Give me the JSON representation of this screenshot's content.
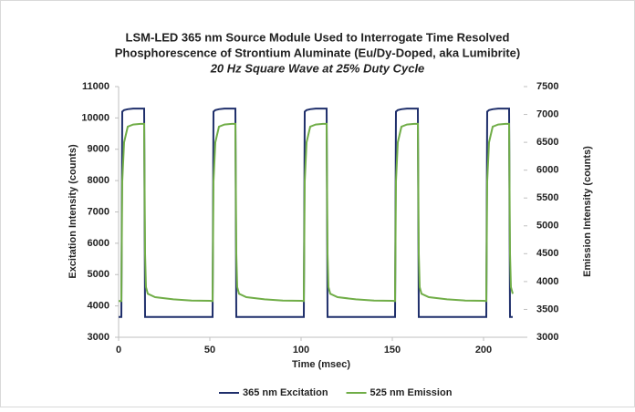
{
  "chart_data": {
    "type": "line",
    "title": [
      "LSM-LED 365 nm Source Module Used to Interrogate Time Resolved",
      "Phosphorescence of Strontium Aluminate (Eu/Dy-Doped, aka Lumibrite)"
    ],
    "subtitle": "20 Hz Square Wave at 25% Duty Cycle",
    "x_label": "Time (msec)",
    "y_label": "Excitation Intensity (counts)",
    "y2_label": "Emission Intensity (counts)",
    "x": [
      0,
      1.5,
      2,
      3,
      5,
      8,
      12,
      14,
      14.5,
      15,
      16,
      20,
      30,
      40,
      50,
      51.5,
      52,
      53,
      55,
      58,
      62,
      64,
      64.5,
      65,
      66,
      70,
      80,
      90,
      100,
      101.5,
      102,
      103,
      105,
      108,
      112,
      114,
      114.5,
      115,
      116,
      120,
      130,
      140,
      150,
      151.5,
      152,
      153,
      155,
      158,
      162,
      164,
      164.5,
      165,
      166,
      170,
      180,
      190,
      200,
      201.5,
      202,
      203,
      205,
      208,
      212,
      214,
      214.5,
      215,
      216
    ],
    "series": [
      {
        "name": "365 nm Excitation",
        "color": "#1f2f6b",
        "axis": "y",
        "values": [
          3650,
          3650,
          10200,
          10250,
          10280,
          10300,
          10300,
          10300,
          3650,
          3650,
          3650,
          3650,
          3650,
          3650,
          3650,
          3650,
          10200,
          10250,
          10280,
          10300,
          10300,
          10300,
          3650,
          3650,
          3650,
          3650,
          3650,
          3650,
          3650,
          3650,
          10200,
          10250,
          10280,
          10300,
          10300,
          10300,
          3650,
          3650,
          3650,
          3650,
          3650,
          3650,
          3650,
          3650,
          10200,
          10250,
          10280,
          10300,
          10300,
          10300,
          3650,
          3650,
          3650,
          3650,
          3650,
          3650,
          3650,
          3650,
          10200,
          10250,
          10280,
          10300,
          10300,
          10300,
          3650,
          3650,
          3650
        ]
      },
      {
        "name": "525 nm Emission",
        "color": "#70ad47",
        "axis": "y2",
        "values": [
          3650,
          3650,
          5800,
          6500,
          6780,
          6820,
          6830,
          6830,
          4500,
          3900,
          3780,
          3720,
          3680,
          3660,
          3655,
          3650,
          5800,
          6500,
          6780,
          6820,
          6830,
          6830,
          4500,
          3900,
          3780,
          3720,
          3680,
          3660,
          3655,
          3650,
          5800,
          6500,
          6780,
          6820,
          6830,
          6830,
          4500,
          3900,
          3780,
          3720,
          3680,
          3660,
          3655,
          3650,
          5800,
          6500,
          6780,
          6820,
          6830,
          6830,
          4500,
          3900,
          3780,
          3720,
          3680,
          3660,
          3655,
          3650,
          5800,
          6500,
          6780,
          6820,
          6830,
          6830,
          4500,
          3900,
          3780
        ]
      }
    ],
    "xlim": [
      0,
      222
    ],
    "xticks": [
      0,
      50,
      100,
      150,
      200
    ],
    "ylim": [
      3000,
      11000
    ],
    "yticks": [
      3000,
      4000,
      5000,
      6000,
      7000,
      8000,
      9000,
      10000,
      11000
    ],
    "y2lim": [
      3000,
      7500
    ],
    "y2ticks": [
      3000,
      3500,
      4000,
      4500,
      5000,
      5500,
      6000,
      6500,
      7000,
      7500
    ],
    "grid": false,
    "legend": "bottom"
  }
}
